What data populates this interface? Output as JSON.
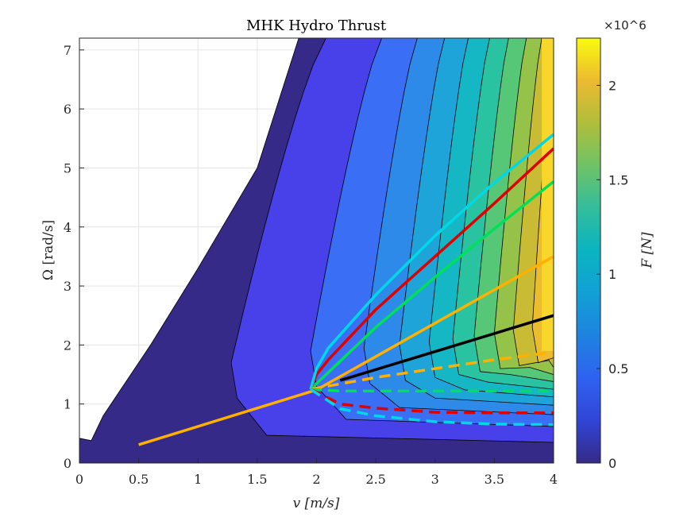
{
  "chart_data": {
    "type": "contour",
    "title": "MHK Hydro Thrust",
    "xlabel": "v [m/s]",
    "ylabel": "Ω [rad/s]",
    "xlim": [
      0,
      4
    ],
    "ylim": [
      0,
      7.2
    ],
    "x_ticks": [
      "0",
      "0.5",
      "1",
      "1.5",
      "2",
      "2.5",
      "3",
      "3.5",
      "4"
    ],
    "y_ticks": [
      "0",
      "1",
      "2",
      "3",
      "4",
      "5",
      "6",
      "7"
    ],
    "grid": true,
    "colorbar": {
      "label": "F [N]",
      "exponent": "×10^6",
      "range": [
        0,
        2250000
      ],
      "ticks": [
        "0",
        "0.5",
        "1",
        "1.5",
        "2"
      ],
      "colormap": "parula"
    },
    "contour_band_colors": [
      "#352a87",
      "#4840e8",
      "#3a6ef5",
      "#2d8ae8",
      "#1ea4d9",
      "#16b7c4",
      "#2ac3a1",
      "#56c677",
      "#95c34a",
      "#cabb35",
      "#ebbc2f",
      "#f8d72a"
    ],
    "series": [
      {
        "color": "#ffb000",
        "style": "solid",
        "x": [
          0.5,
          2.0,
          4.0
        ],
        "y": [
          0.31,
          1.24,
          3.5
        ]
      },
      {
        "color": "#000000",
        "style": "solid",
        "x": [
          2.2,
          4.0
        ],
        "y": [
          1.4,
          2.5
        ]
      },
      {
        "color": "#00e05a",
        "style": "solid",
        "x": [
          1.95,
          2.5,
          3.0,
          3.5,
          4.0
        ],
        "y": [
          1.25,
          2.3,
          3.15,
          3.97,
          4.77
        ]
      },
      {
        "color": "#e00000",
        "style": "solid",
        "x": [
          1.95,
          2.0,
          2.1,
          2.5,
          3.0,
          3.5,
          4.0
        ],
        "y": [
          1.25,
          1.5,
          1.75,
          2.6,
          3.5,
          4.4,
          5.33
        ]
      },
      {
        "color": "#00d8e8",
        "style": "solid",
        "x": [
          1.95,
          2.0,
          2.1,
          2.5,
          3.0,
          3.5,
          4.0
        ],
        "y": [
          1.25,
          1.6,
          1.95,
          2.85,
          3.85,
          4.75,
          5.57
        ]
      },
      {
        "color": "#ffb000",
        "style": "dashed",
        "x": [
          1.95,
          2.5,
          3.0,
          3.5,
          4.0
        ],
        "y": [
          1.25,
          1.45,
          1.6,
          1.75,
          1.88
        ]
      },
      {
        "color": "#00e05a",
        "style": "dashed",
        "x": [
          1.95,
          2.2,
          3.0,
          4.0
        ],
        "y": [
          1.25,
          1.22,
          1.22,
          1.22
        ]
      },
      {
        "color": "#e00000",
        "style": "dashed",
        "x": [
          1.95,
          2.2,
          2.5,
          3.0,
          3.5,
          4.0
        ],
        "y": [
          1.25,
          1.0,
          0.93,
          0.86,
          0.85,
          0.85
        ]
      },
      {
        "color": "#00d8e8",
        "style": "dashed",
        "x": [
          1.95,
          2.2,
          2.5,
          3.0,
          3.5,
          4.0
        ],
        "y": [
          1.25,
          0.92,
          0.8,
          0.7,
          0.66,
          0.65
        ]
      }
    ]
  }
}
